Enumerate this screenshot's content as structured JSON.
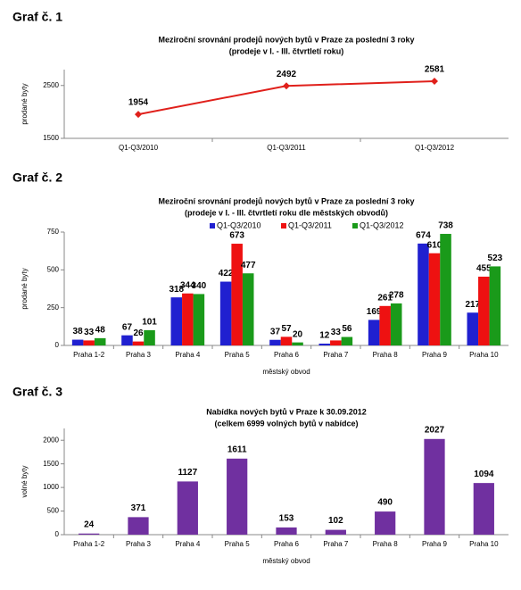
{
  "headings": [
    "Graf č. 1",
    "Graf č. 2",
    "Graf č. 3"
  ],
  "chart_data": [
    {
      "type": "line",
      "title": "Meziroční srovnání prodejů nových bytů v Praze za poslední 3 roky",
      "subtitle": "(prodeje v I. - III. čtvrtletí roku)",
      "ylabel": "prodané byty",
      "categories": [
        "Q1-Q3/2010",
        "Q1-Q3/2011",
        "Q1-Q3/2012"
      ],
      "values": [
        1954,
        2492,
        2581
      ],
      "color": "#e0201b",
      "ylim": [
        1500,
        2800
      ],
      "yticks": [
        1500,
        2500
      ]
    },
    {
      "type": "grouped-bar",
      "title": "Meziroční srovnání prodejů nových bytů v Praze za poslední 3 roky",
      "subtitle": "(prodeje v I. - III. čtvrtletí roku dle městských obvodů)",
      "ylabel": "prodané byty",
      "xlabel": "městský obvod",
      "categories": [
        "Praha 1-2",
        "Praha 3",
        "Praha 4",
        "Praha 5",
        "Praha 6",
        "Praha 7",
        "Praha 8",
        "Praha 9",
        "Praha 10"
      ],
      "series": [
        {
          "name": "Q1-Q3/2010",
          "color": "#2020d0",
          "values": [
            38,
            67,
            318,
            422,
            37,
            12,
            169,
            674,
            217
          ]
        },
        {
          "name": "Q1-Q3/2011",
          "color": "#ee1111",
          "values": [
            33,
            26,
            344,
            673,
            57,
            33,
            261,
            610,
            455
          ]
        },
        {
          "name": "Q1-Q3/2012",
          "color": "#1a9a1a",
          "values": [
            48,
            101,
            340,
            477,
            20,
            56,
            278,
            738,
            523
          ]
        }
      ],
      "ylim": [
        0,
        750
      ],
      "yticks": [
        0,
        250,
        500,
        750
      ]
    },
    {
      "type": "bar",
      "title": "Nabídka nových bytů v Praze k 30.09.2012",
      "subtitle": "(celkem 6999 volných bytů v nabídce)",
      "ylabel": "volné byty",
      "xlabel": "městský obvod",
      "categories": [
        "Praha 1-2",
        "Praha 3",
        "Praha 4",
        "Praha 5",
        "Praha 6",
        "Praha 7",
        "Praha 8",
        "Praha 9",
        "Praha 10"
      ],
      "values": [
        24,
        371,
        1127,
        1611,
        153,
        102,
        490,
        2027,
        1094
      ],
      "color": "#7030a0",
      "ylim": [
        0,
        2250
      ],
      "yticks": [
        0,
        500,
        1000,
        1500,
        2000
      ]
    }
  ]
}
